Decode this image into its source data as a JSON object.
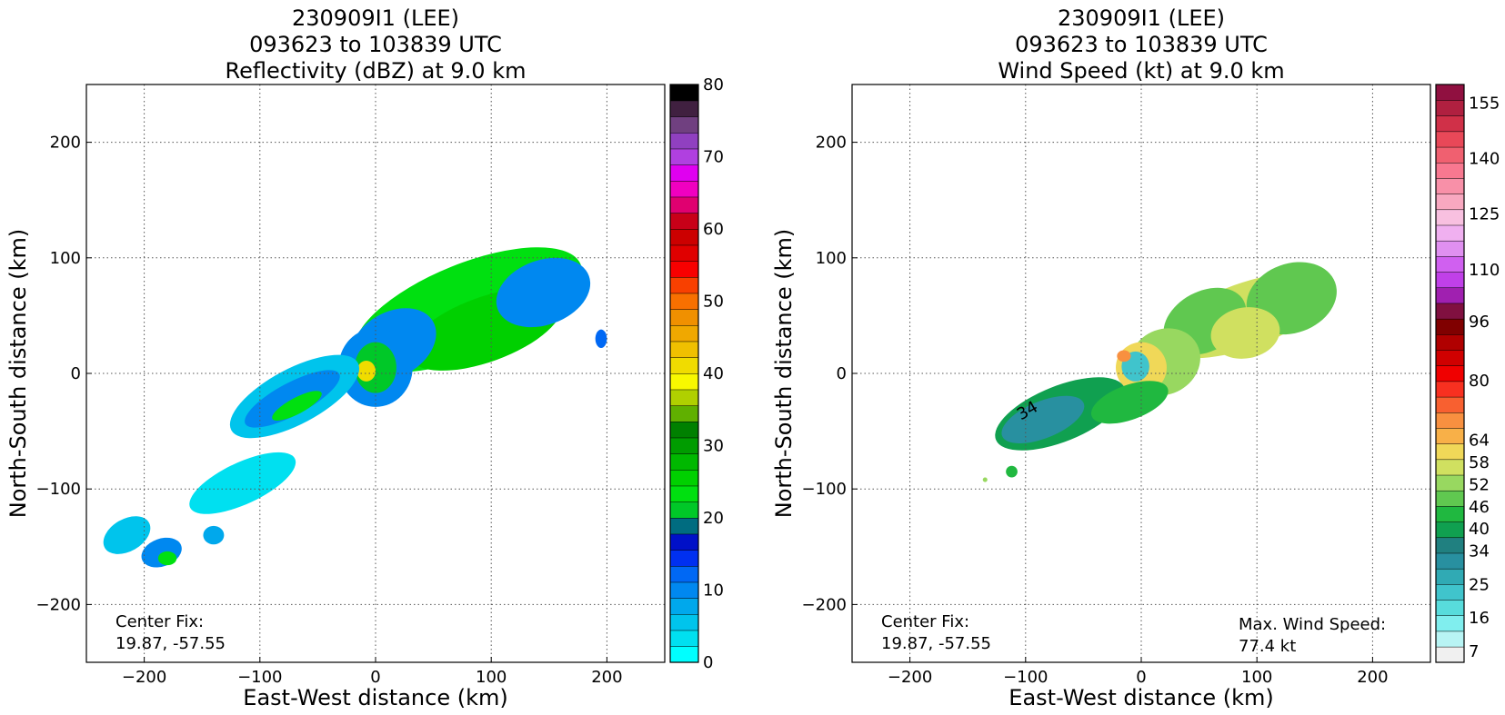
{
  "chart_data": [
    {
      "type": "heatmap",
      "title_lines": [
        "230909I1 (LEE)",
        "093623 to 103839 UTC",
        "Reflectivity (dBZ) at 9.0 km"
      ],
      "xlabel": "East-West distance (km)",
      "ylabel": "North-South distance (km)",
      "xlim": [
        -250,
        250
      ],
      "ylim": [
        -250,
        250
      ],
      "xticks": [
        -200,
        -100,
        0,
        100,
        200
      ],
      "yticks": [
        -200,
        -100,
        0,
        100,
        200
      ],
      "grid": true,
      "annotations": [
        {
          "text": "Center Fix:",
          "position": "bottom-left"
        },
        {
          "text": "19.87, -57.55",
          "position": "bottom-left"
        }
      ],
      "colorbar": {
        "min": 0,
        "max": 80,
        "ticks": [
          0,
          10,
          20,
          30,
          40,
          50,
          60,
          70,
          80
        ],
        "colors": [
          "#00ffff",
          "#00e0f0",
          "#00c4ec",
          "#00a8ec",
          "#0088f0",
          "#0068f4",
          "#0030f0",
          "#0010c8",
          "#006c80",
          "#00c828",
          "#00e010",
          "#00d000",
          "#00b800",
          "#009c00",
          "#008000",
          "#60b000",
          "#b0d000",
          "#f8f800",
          "#f0dc00",
          "#f0c000",
          "#f0a800",
          "#f09000",
          "#f87000",
          "#f84000",
          "#f80000",
          "#e00000",
          "#cc0000",
          "#c80018",
          "#e00070",
          "#f000c0",
          "#e000f0",
          "#b040e0",
          "#9040c0",
          "#704080",
          "#402040",
          "#000000"
        ]
      },
      "fields": [
        {
          "x": 80,
          "y": 55,
          "rx": 105,
          "ry": 40,
          "angle": -22,
          "value": 24
        },
        {
          "x": 95,
          "y": 38,
          "rx": 70,
          "ry": 28,
          "angle": -20,
          "value": 26
        },
        {
          "x": 145,
          "y": 70,
          "rx": 42,
          "ry": 28,
          "angle": -20,
          "value": 9
        },
        {
          "x": 15,
          "y": 25,
          "rx": 40,
          "ry": 28,
          "angle": -30,
          "value": 10
        },
        {
          "x": 0,
          "y": 5,
          "rx": 32,
          "ry": 34,
          "angle": 0,
          "value": 11
        },
        {
          "x": 0,
          "y": 5,
          "rx": 18,
          "ry": 22,
          "angle": 0,
          "value": 22
        },
        {
          "x": -8,
          "y": 2,
          "rx": 8,
          "ry": 9,
          "angle": 0,
          "value": 40
        },
        {
          "x": -70,
          "y": -20,
          "rx": 62,
          "ry": 24,
          "angle": -28,
          "value": 6
        },
        {
          "x": -72,
          "y": -22,
          "rx": 46,
          "ry": 14,
          "angle": -28,
          "value": 11
        },
        {
          "x": -68,
          "y": -28,
          "rx": 24,
          "ry": 7,
          "angle": -28,
          "value": 23
        },
        {
          "x": -115,
          "y": -95,
          "rx": 50,
          "ry": 18,
          "angle": -25,
          "value": 4
        },
        {
          "x": -215,
          "y": -140,
          "rx": 22,
          "ry": 14,
          "angle": -30,
          "value": 6
        },
        {
          "x": -185,
          "y": -155,
          "rx": 18,
          "ry": 12,
          "angle": -20,
          "value": 9
        },
        {
          "x": -180,
          "y": -160,
          "rx": 8,
          "ry": 6,
          "angle": 0,
          "value": 24
        },
        {
          "x": -140,
          "y": -140,
          "rx": 9,
          "ry": 8,
          "angle": 0,
          "value": 7
        },
        {
          "x": 195,
          "y": 30,
          "rx": 5,
          "ry": 8,
          "angle": 0,
          "value": 12
        }
      ]
    },
    {
      "type": "heatmap",
      "title_lines": [
        "230909I1 (LEE)",
        "093623 to 103839 UTC",
        "Wind Speed (kt) at 9.0 km"
      ],
      "xlabel": "East-West distance (km)",
      "ylabel": "North-South distance (km)",
      "xlim": [
        -250,
        250
      ],
      "ylim": [
        -250,
        250
      ],
      "xticks": [
        -200,
        -100,
        0,
        100,
        200
      ],
      "yticks": [
        -200,
        -100,
        0,
        100,
        200
      ],
      "grid": true,
      "annotations": [
        {
          "text": "Center Fix:",
          "position": "bottom-left"
        },
        {
          "text": "19.87, -57.55",
          "position": "bottom-left"
        },
        {
          "text": "Max. Wind Speed:",
          "position": "bottom-right"
        },
        {
          "text": "77.4 kt",
          "position": "bottom-right"
        }
      ],
      "contour_label": "34",
      "colorbar": {
        "min": 4,
        "max": 160,
        "ticks": [
          7,
          16,
          25,
          34,
          40,
          46,
          52,
          58,
          64,
          80,
          96,
          110,
          125,
          140,
          155
        ],
        "colors": [
          "#f0f0f0",
          "#b8f4f4",
          "#80eeee",
          "#58dcdc",
          "#40c4cc",
          "#30aab4",
          "#2890a0",
          "#208080",
          "#10a050",
          "#20b840",
          "#60c850",
          "#98d860",
          "#d0e060",
          "#f0d858",
          "#f8b048",
          "#f89040",
          "#f86030",
          "#f83020",
          "#f00000",
          "#d00000",
          "#b00000",
          "#800000",
          "#801040",
          "#a020b0",
          "#c040e8",
          "#d060f0",
          "#e090f0",
          "#f0b0f0",
          "#f8c0e0",
          "#f8a8c0",
          "#f890a8",
          "#f87890",
          "#f06070",
          "#e84858",
          "#d03048",
          "#b02040",
          "#901040"
        ]
      },
      "fields": [
        {
          "x": 90,
          "y": 50,
          "rx": 75,
          "ry": 28,
          "angle": -20,
          "value": 55
        },
        {
          "x": 130,
          "y": 65,
          "rx": 40,
          "ry": 30,
          "angle": -20,
          "value": 49
        },
        {
          "x": 55,
          "y": 45,
          "rx": 38,
          "ry": 26,
          "angle": -28,
          "value": 47
        },
        {
          "x": 90,
          "y": 35,
          "rx": 30,
          "ry": 22,
          "angle": -10,
          "value": 58
        },
        {
          "x": 20,
          "y": 10,
          "rx": 32,
          "ry": 28,
          "angle": -30,
          "value": 52
        },
        {
          "x": 0,
          "y": 5,
          "rx": 22,
          "ry": 22,
          "angle": 0,
          "value": 60
        },
        {
          "x": -5,
          "y": 6,
          "rx": 12,
          "ry": 13,
          "angle": 0,
          "value": 25
        },
        {
          "x": -15,
          "y": 15,
          "rx": 6,
          "ry": 5,
          "angle": 0,
          "value": 70
        },
        {
          "x": -70,
          "y": -35,
          "rx": 60,
          "ry": 24,
          "angle": -22,
          "value": 38
        },
        {
          "x": -85,
          "y": -40,
          "rx": 38,
          "ry": 16,
          "angle": -22,
          "value": 33
        },
        {
          "x": -10,
          "y": -25,
          "rx": 35,
          "ry": 15,
          "angle": -20,
          "value": 43
        },
        {
          "x": -112,
          "y": -85,
          "rx": 5,
          "ry": 5,
          "angle": 0,
          "value": 44
        },
        {
          "x": -135,
          "y": -92,
          "rx": 2,
          "ry": 2,
          "angle": 0,
          "value": 54
        }
      ]
    }
  ]
}
